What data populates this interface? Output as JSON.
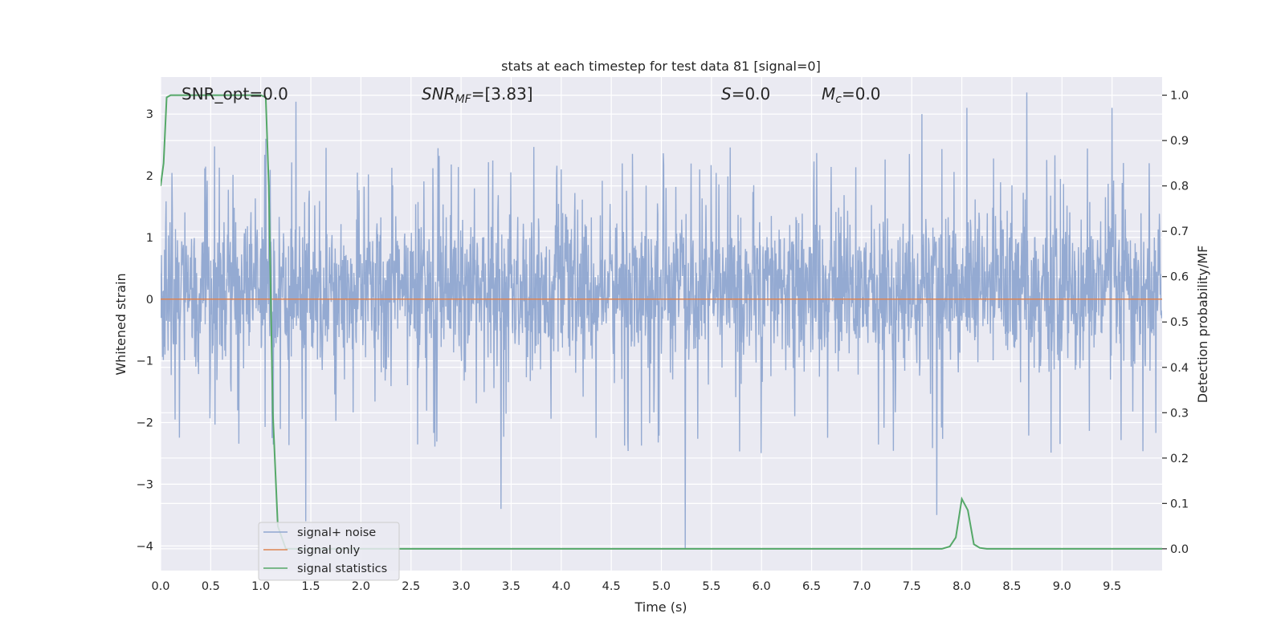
{
  "chart_data": {
    "type": "line",
    "title": "stats at each timestep for test data 81 [signal=0]",
    "xlabel": "Time (s)",
    "ylabel_left": "Whitened strain",
    "ylabel_right": "Detection probability/MF",
    "xlim": [
      0.0,
      10.0
    ],
    "ylim_left": [
      -4.4,
      3.6
    ],
    "ylim_right": [
      -0.048,
      1.04
    ],
    "x_ticks": [
      "0.0",
      "0.5",
      "1.0",
      "1.5",
      "2.0",
      "2.5",
      "3.0",
      "3.5",
      "4.0",
      "4.5",
      "5.0",
      "5.5",
      "6.0",
      "6.5",
      "7.0",
      "7.5",
      "8.0",
      "8.5",
      "9.0",
      "9.5"
    ],
    "y_ticks_left": [
      "3",
      "2",
      "1",
      "0",
      "−1",
      "−2",
      "−3",
      "−4"
    ],
    "y_ticks_right": [
      "1.0",
      "0.9",
      "0.8",
      "0.7",
      "0.6",
      "0.5",
      "0.4",
      "0.3",
      "0.2",
      "0.1",
      "0.0"
    ],
    "grid": true,
    "legend_position": "lower-left",
    "colors": {
      "signal_noise": "#8fa6d0",
      "signal_only": "#dd8452",
      "statistics": "#55a868",
      "plot_bg": "#eaeaf2",
      "grid": "#ffffff"
    },
    "annotations": {
      "snr_opt": "SNR_opt=0.0",
      "snr_mf_label": "SNR",
      "snr_mf_sub": "MF",
      "snr_mf_value": "=[3.83]",
      "s_label": "S",
      "s_value": "=0.0",
      "mc_label": "M",
      "mc_sub": "c",
      "mc_value": "=0.0"
    },
    "series": [
      {
        "name": "signal+ noise",
        "axis": "left",
        "kind": "noise",
        "sampling_rate_hz": 2048,
        "duration_s": 10.0,
        "envelope_typical": [
          -1.9,
          2.4
        ],
        "extreme_values": [
          {
            "x": 1.05,
            "y": 2.6
          },
          {
            "x": 1.35,
            "y": 3.2
          },
          {
            "x": 1.45,
            "y": -3.6
          },
          {
            "x": 3.4,
            "y": -3.4
          },
          {
            "x": 5.24,
            "y": -4.05
          },
          {
            "x": 7.6,
            "y": 3.0
          },
          {
            "x": 7.75,
            "y": -3.5
          },
          {
            "x": 8.05,
            "y": 3.1
          },
          {
            "x": 8.65,
            "y": 3.35
          },
          {
            "x": 9.5,
            "y": 3.1
          }
        ]
      },
      {
        "name": "signal only",
        "axis": "left",
        "kind": "line",
        "x": [
          0.0,
          10.0
        ],
        "y": [
          0.0,
          0.0
        ]
      },
      {
        "name": "signal statistics",
        "axis": "right",
        "kind": "line",
        "x": [
          0.0,
          0.03,
          0.06,
          0.1,
          0.2,
          0.5,
          0.8,
          1.0,
          1.05,
          1.08,
          1.12,
          1.17,
          1.25,
          2.0,
          5.0,
          7.5,
          7.8,
          7.88,
          7.94,
          8.0,
          8.06,
          8.12,
          8.18,
          8.25,
          8.5,
          9.0,
          10.0
        ],
        "y": [
          0.8,
          0.85,
          0.995,
          1.0,
          1.0,
          1.0,
          1.0,
          1.0,
          0.995,
          0.8,
          0.3,
          0.05,
          0.0,
          0.0,
          0.0,
          0.0,
          0.0,
          0.005,
          0.025,
          0.11,
          0.085,
          0.01,
          0.002,
          0.0,
          0.0,
          0.0,
          0.0
        ]
      }
    ]
  }
}
